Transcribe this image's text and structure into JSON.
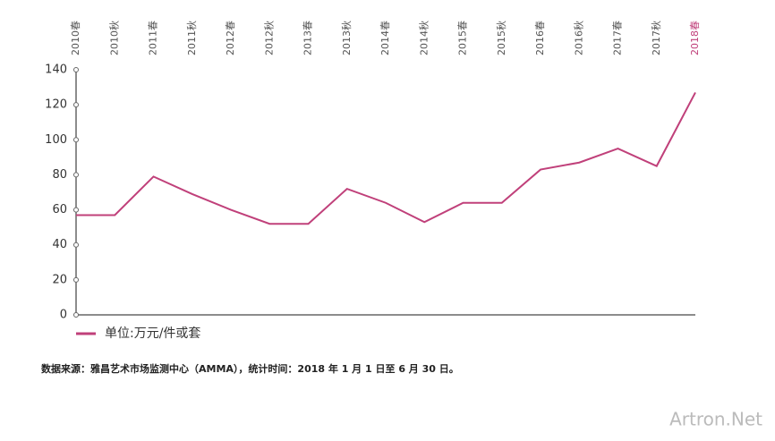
{
  "chart_data": {
    "type": "line",
    "categories": [
      "2010春",
      "2010秋",
      "2011春",
      "2011秋",
      "2012春",
      "2012秋",
      "2013春",
      "2013秋",
      "2014春",
      "2014秋",
      "2015春",
      "2015秋",
      "2016春",
      "2016秋",
      "2017春",
      "2017秋",
      "2018春"
    ],
    "category_colors": [
      "#555555",
      "#555555",
      "#555555",
      "#555555",
      "#555555",
      "#555555",
      "#555555",
      "#555555",
      "#555555",
      "#555555",
      "#555555",
      "#555555",
      "#555555",
      "#555555",
      "#555555",
      "#555555",
      "#c0407a"
    ],
    "series": [
      {
        "name": "单位:万元/件或套",
        "color": "#c0407a",
        "values": [
          57,
          57,
          79,
          69,
          60,
          52,
          52,
          72,
          64,
          53,
          64,
          64,
          83,
          87,
          95,
          85,
          127
        ]
      }
    ],
    "ylim": [
      0,
      140
    ],
    "yticks": [
      0,
      20,
      40,
      60,
      80,
      100,
      120,
      140
    ],
    "note": "数据来源：雅昌艺术市场监测中心（AMMA），统计时间：2018 年 1 月 1 日至 6 月 30 日。",
    "watermark": "Artron.Net"
  }
}
